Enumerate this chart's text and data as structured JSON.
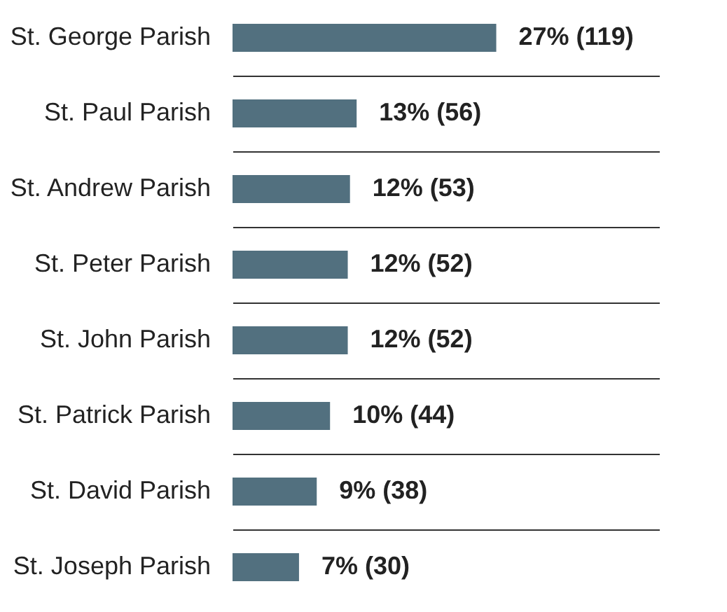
{
  "chart_data": {
    "type": "bar",
    "orientation": "horizontal",
    "categories": [
      "St. George Parish",
      "St. Paul Parish",
      "St. Andrew Parish",
      "St. Peter Parish",
      "St. John Parish",
      "St. Patrick Parish",
      "St. David Parish",
      "St. Joseph Parish"
    ],
    "values": [
      119,
      56,
      53,
      52,
      52,
      44,
      38,
      30
    ],
    "value_labels": [
      "27% (119)",
      "13% (56)",
      "12% (53)",
      "12% (52)",
      "12% (52)",
      "10% (44)",
      "9% (38)",
      "7% (30)"
    ],
    "color": "#52707f",
    "grid": "y"
  }
}
